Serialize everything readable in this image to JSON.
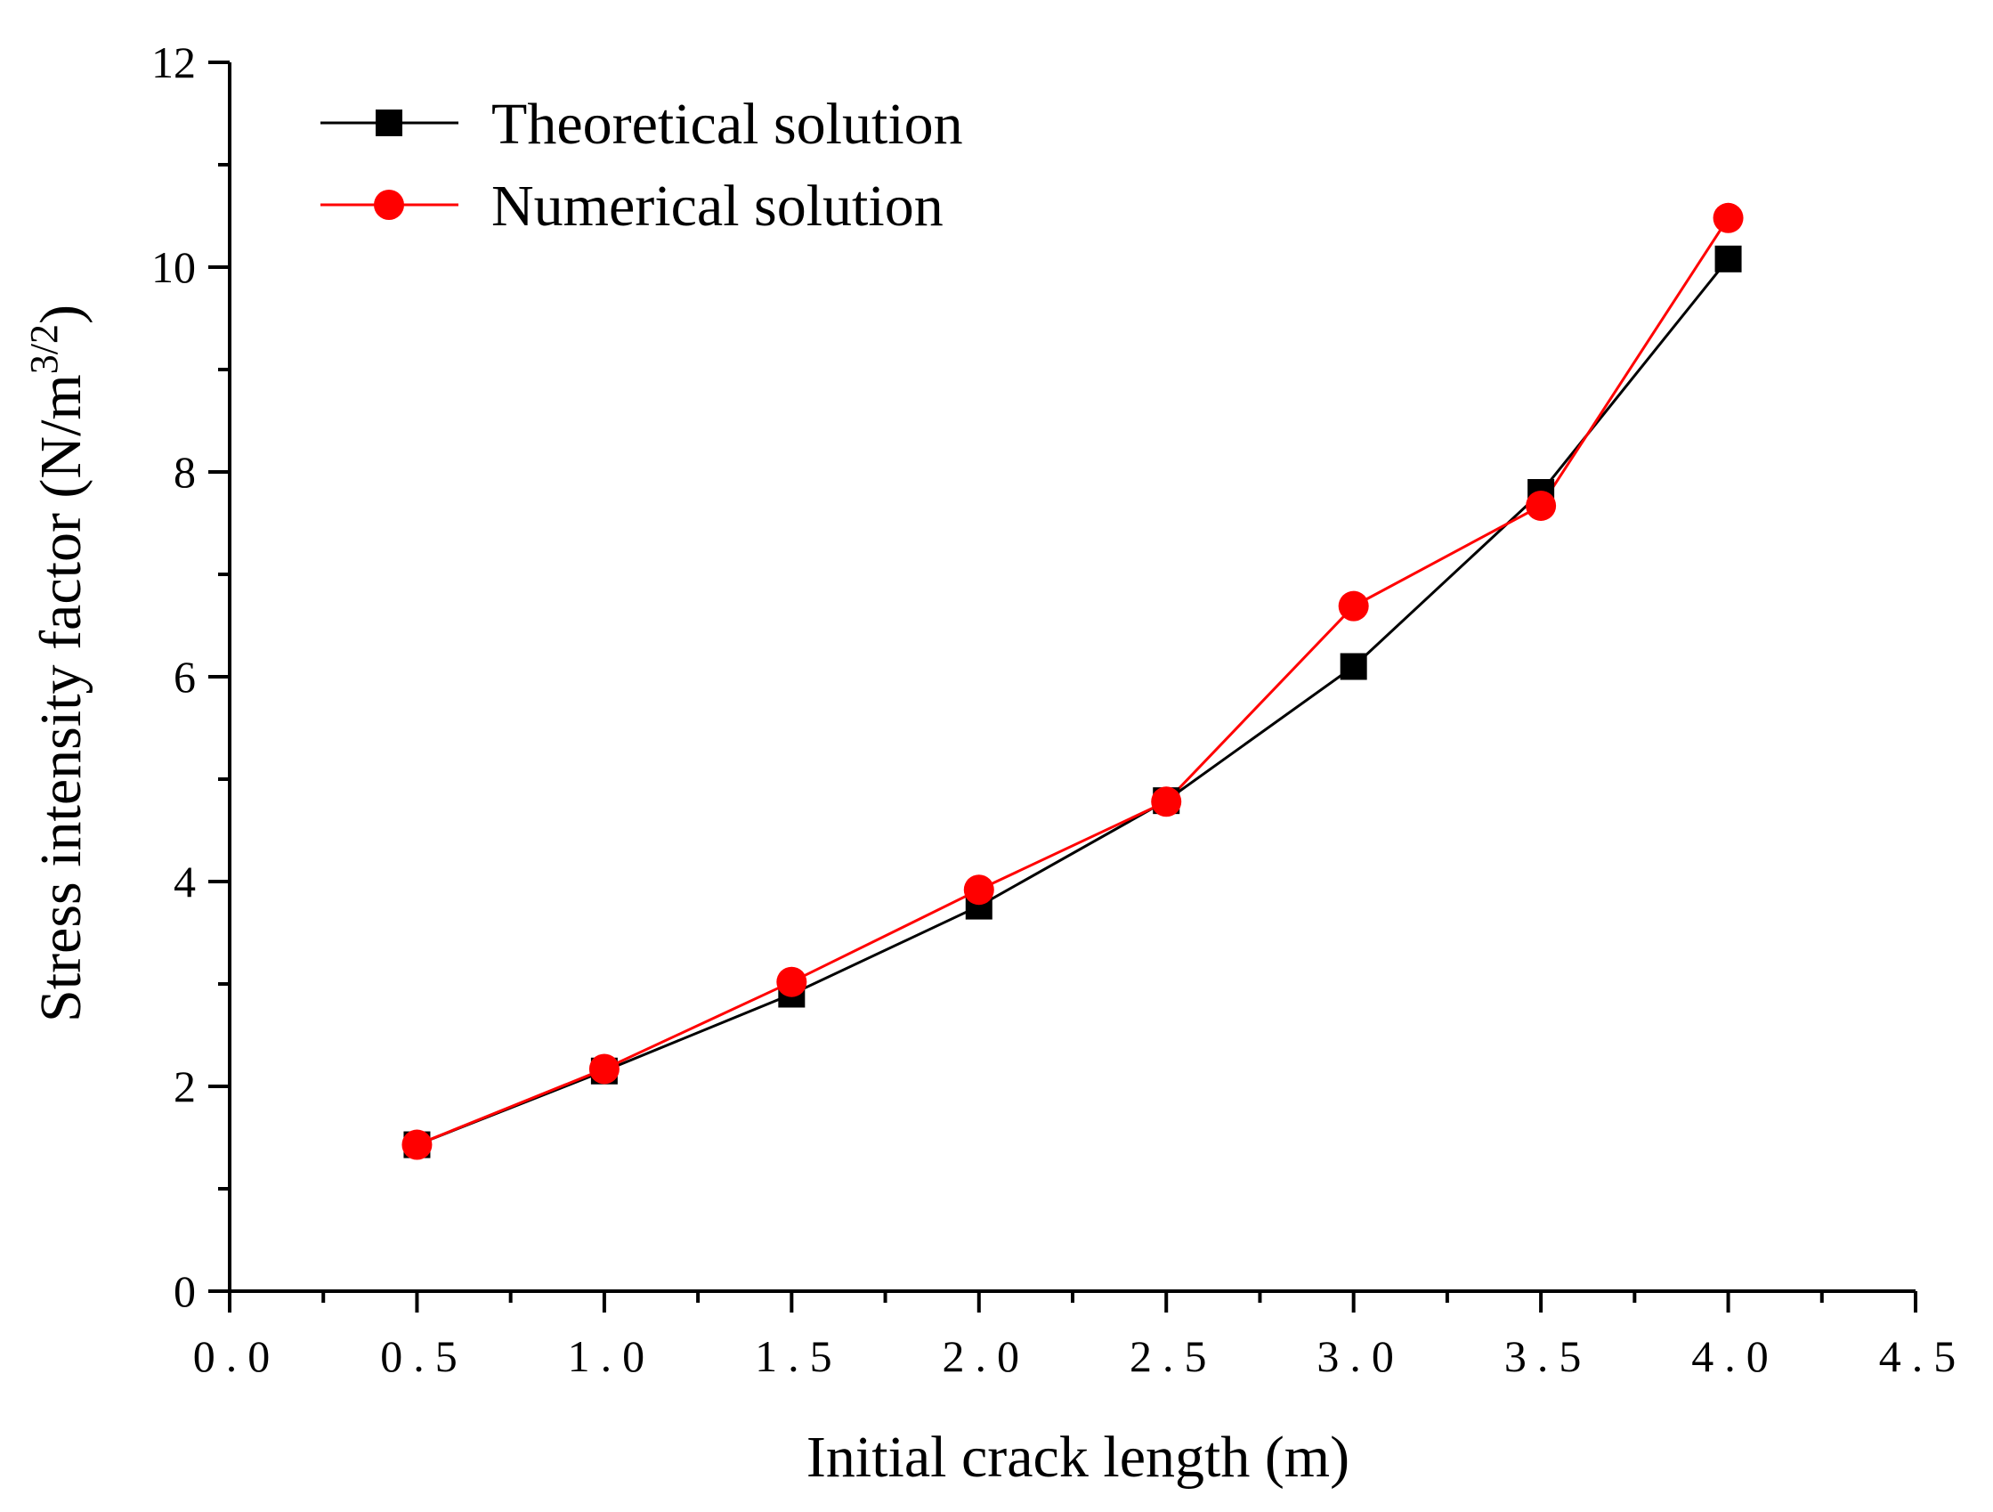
{
  "chart_data": {
    "type": "line",
    "title": "",
    "xlabel": "Initial crack length (m)",
    "ylabel_main": "Stress intensity factor (N/m",
    "ylabel_sup": "3/2",
    "ylabel_close": ")",
    "xlim": [
      0.0,
      4.5
    ],
    "ylim": [
      0,
      12
    ],
    "xticks": [
      0.0,
      0.5,
      1.0,
      1.5,
      2.0,
      2.5,
      3.0,
      3.5,
      4.0,
      4.5
    ],
    "xtick_labels": [
      "0.0",
      "0.5",
      "1.0",
      "1.5",
      "2.0",
      "2.5",
      "3.0",
      "3.5",
      "4.0",
      "4.5"
    ],
    "yticks": [
      0,
      2,
      4,
      6,
      8,
      10,
      12
    ],
    "ytick_labels": [
      "0",
      "2",
      "4",
      "6",
      "8",
      "10",
      "12"
    ],
    "grid": false,
    "legend_position": "top-left",
    "x": [
      0.5,
      1.0,
      1.5,
      2.0,
      2.5,
      3.0,
      3.5,
      4.0
    ],
    "series": [
      {
        "name": "Theoretical solution",
        "marker": "square",
        "color": "#000000",
        "values": [
          1.43,
          2.15,
          2.9,
          3.76,
          4.79,
          6.1,
          7.8,
          10.08
        ]
      },
      {
        "name": "Numerical solution",
        "marker": "circle",
        "color": "#ff0000",
        "values": [
          1.43,
          2.17,
          3.02,
          3.92,
          4.78,
          6.69,
          7.67,
          10.48
        ]
      }
    ]
  }
}
